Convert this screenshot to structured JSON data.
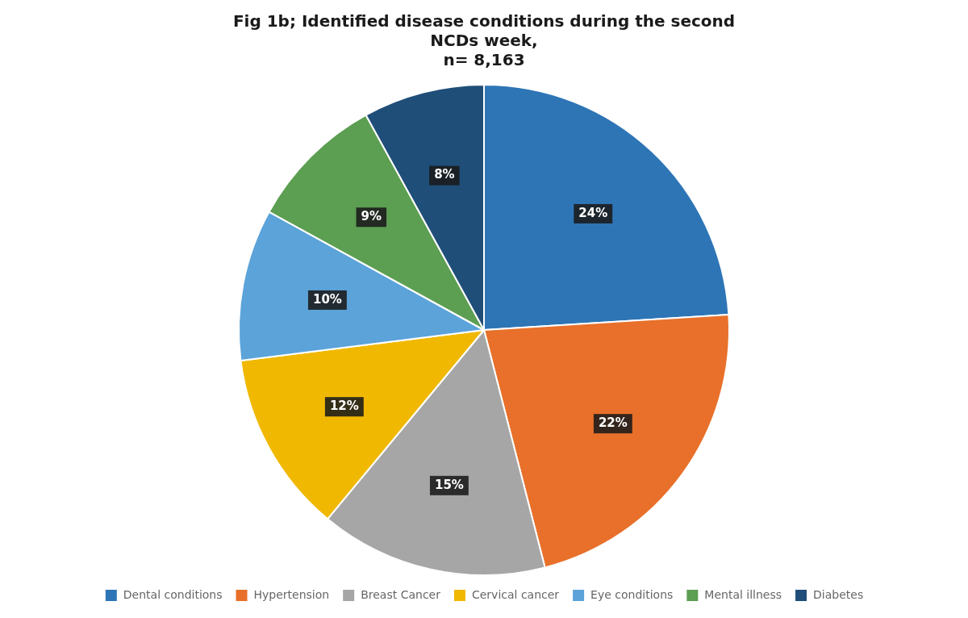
{
  "chart_data": {
    "type": "pie",
    "title": "Fig 1b; Identified disease conditions during the second\nNCDs week,\nn= 8,163",
    "categories": [
      "Dental conditions",
      "Hypertension",
      "Breast Cancer",
      "Cervical cancer",
      "Eye conditions",
      "Mental illness",
      "Diabetes"
    ],
    "values": [
      24,
      22,
      15,
      12,
      10,
      9,
      8
    ],
    "value_labels": [
      "24%",
      "22%",
      "15%",
      "12%",
      "10%",
      "9%",
      "8%"
    ],
    "colors": [
      "#2E75B6",
      "#E8702A",
      "#A6A6A6",
      "#F0B800",
      "#5BA3D9",
      "#5C9E52",
      "#1F4E79"
    ],
    "data_labels": true,
    "legend": "bottom"
  }
}
